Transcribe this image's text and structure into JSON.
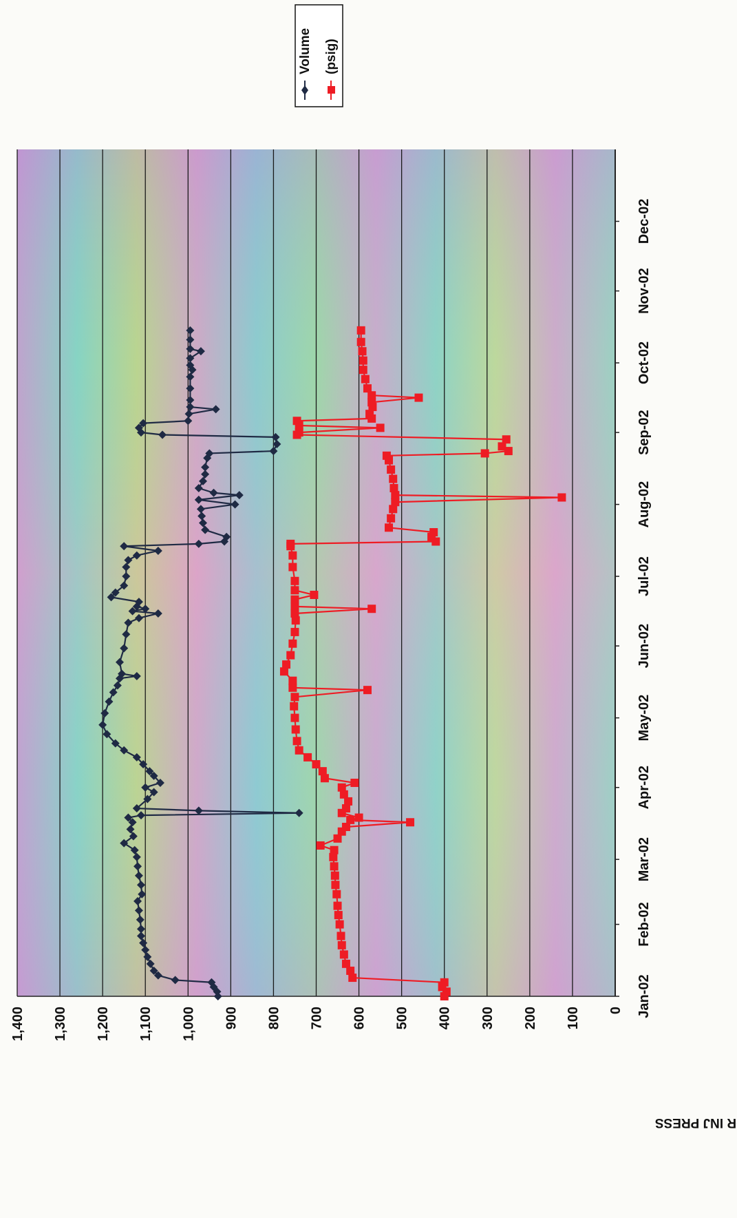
{
  "chart_data": {
    "type": "line",
    "title": "",
    "xlabel": "",
    "ylabel": "BWPD OR INJ PRESS",
    "ylim": [
      0,
      1400
    ],
    "yticks": [
      "0",
      "100",
      "200",
      "300",
      "400",
      "500",
      "600",
      "700",
      "800",
      "900",
      "1,000",
      "1,100",
      "1,200",
      "1,300",
      "1,400"
    ],
    "xlim": [
      "2002-01-01",
      "2003-01-01"
    ],
    "xticks": [
      "Jan-02",
      "Feb-02",
      "Mar-02",
      "Apr-02",
      "May-02",
      "Jun-02",
      "Jul-02",
      "Aug-02",
      "Sep-02",
      "Oct-02",
      "Nov-02",
      "Dec-02"
    ],
    "orientation": "rotated 90° clockwise",
    "grid": true,
    "legend": "top-right",
    "series": [
      {
        "name": "Volume",
        "color": "#1f2a44",
        "marker": "diamond",
        "points": [
          [
            "2002-01-01",
            930
          ],
          [
            "2002-01-03",
            932
          ],
          [
            "2002-01-05",
            940
          ],
          [
            "2002-01-07",
            945
          ],
          [
            "2002-01-08",
            1030
          ],
          [
            "2002-01-10",
            1070
          ],
          [
            "2002-01-12",
            1080
          ],
          [
            "2002-01-15",
            1088
          ],
          [
            "2002-01-18",
            1095
          ],
          [
            "2002-01-21",
            1100
          ],
          [
            "2002-01-24",
            1105
          ],
          [
            "2002-01-27",
            1110
          ],
          [
            "2002-01-30",
            1110
          ],
          [
            "2002-02-03",
            1112
          ],
          [
            "2002-02-07",
            1115
          ],
          [
            "2002-02-11",
            1118
          ],
          [
            "2002-02-14",
            1108
          ],
          [
            "2002-02-18",
            1110
          ],
          [
            "2002-02-22",
            1115
          ],
          [
            "2002-02-26",
            1118
          ],
          [
            "2002-03-02",
            1120
          ],
          [
            "2002-03-05",
            1125
          ],
          [
            "2002-03-08",
            1150
          ],
          [
            "2002-03-11",
            1128
          ],
          [
            "2002-03-14",
            1135
          ],
          [
            "2002-03-17",
            1130
          ],
          [
            "2002-03-19",
            1140
          ],
          [
            "2002-03-20",
            1110
          ],
          [
            "2002-03-21",
            740
          ],
          [
            "2002-03-22",
            975
          ],
          [
            "2002-03-23",
            1120
          ],
          [
            "2002-03-27",
            1095
          ],
          [
            "2002-03-30",
            1080
          ],
          [
            "2002-04-01",
            1100
          ],
          [
            "2002-04-03",
            1065
          ],
          [
            "2002-04-06",
            1080
          ],
          [
            "2002-04-08",
            1090
          ],
          [
            "2002-04-11",
            1105
          ],
          [
            "2002-04-14",
            1120
          ],
          [
            "2002-04-17",
            1150
          ],
          [
            "2002-04-20",
            1170
          ],
          [
            "2002-04-24",
            1190
          ],
          [
            "2002-04-28",
            1200
          ],
          [
            "2002-05-03",
            1195
          ],
          [
            "2002-05-08",
            1185
          ],
          [
            "2002-05-12",
            1175
          ],
          [
            "2002-05-15",
            1165
          ],
          [
            "2002-05-18",
            1160
          ],
          [
            "2002-05-19",
            1120
          ],
          [
            "2002-05-20",
            1155
          ],
          [
            "2002-05-25",
            1160
          ],
          [
            "2002-05-31",
            1150
          ],
          [
            "2002-06-06",
            1145
          ],
          [
            "2002-06-11",
            1140
          ],
          [
            "2002-06-13",
            1115
          ],
          [
            "2002-06-15",
            1070
          ],
          [
            "2002-06-16",
            1130
          ],
          [
            "2002-06-17",
            1100
          ],
          [
            "2002-06-18",
            1120
          ],
          [
            "2002-06-20",
            1115
          ],
          [
            "2002-06-22",
            1180
          ],
          [
            "2002-06-24",
            1170
          ],
          [
            "2002-06-27",
            1150
          ],
          [
            "2002-07-01",
            1145
          ],
          [
            "2002-07-05",
            1145
          ],
          [
            "2002-07-08",
            1140
          ],
          [
            "2002-07-10",
            1120
          ],
          [
            "2002-07-12",
            1070
          ],
          [
            "2002-07-14",
            1150
          ],
          [
            "2002-07-15",
            975
          ],
          [
            "2002-07-16",
            915
          ],
          [
            "2002-07-18",
            910
          ],
          [
            "2002-07-21",
            960
          ],
          [
            "2002-07-24",
            965
          ],
          [
            "2002-07-27",
            968
          ],
          [
            "2002-07-30",
            970
          ],
          [
            "2002-08-01",
            890
          ],
          [
            "2002-08-03",
            975
          ],
          [
            "2002-08-05",
            880
          ],
          [
            "2002-08-06",
            940
          ],
          [
            "2002-08-08",
            975
          ],
          [
            "2002-08-11",
            965
          ],
          [
            "2002-08-14",
            960
          ],
          [
            "2002-08-17",
            960
          ],
          [
            "2002-08-21",
            955
          ],
          [
            "2002-08-23",
            950
          ],
          [
            "2002-08-24",
            800
          ],
          [
            "2002-08-27",
            792
          ],
          [
            "2002-08-30",
            795
          ],
          [
            "2002-08-31",
            1060
          ],
          [
            "2002-09-01",
            1110
          ],
          [
            "2002-09-03",
            1115
          ],
          [
            "2002-09-05",
            1105
          ],
          [
            "2002-09-06",
            1000
          ],
          [
            "2002-09-09",
            998
          ],
          [
            "2002-09-11",
            935
          ],
          [
            "2002-09-12",
            995
          ],
          [
            "2002-09-15",
            995
          ],
          [
            "2002-09-20",
            995
          ],
          [
            "2002-09-25",
            995
          ],
          [
            "2002-09-28",
            990
          ],
          [
            "2002-09-30",
            995
          ],
          [
            "2002-10-03",
            995
          ],
          [
            "2002-10-06",
            970
          ],
          [
            "2002-10-07",
            995
          ],
          [
            "2002-10-11",
            995
          ],
          [
            "2002-10-15",
            995
          ]
        ]
      },
      {
        "name": "(psig)",
        "color": "#ee1c24",
        "marker": "square",
        "points": [
          [
            "2002-01-01",
            400
          ],
          [
            "2002-01-03",
            395
          ],
          [
            "2002-01-05",
            405
          ],
          [
            "2002-01-07",
            400
          ],
          [
            "2002-01-09",
            615
          ],
          [
            "2002-01-12",
            620
          ],
          [
            "2002-01-15",
            630
          ],
          [
            "2002-01-19",
            635
          ],
          [
            "2002-01-23",
            640
          ],
          [
            "2002-01-27",
            642
          ],
          [
            "2002-02-01",
            645
          ],
          [
            "2002-02-05",
            648
          ],
          [
            "2002-02-09",
            650
          ],
          [
            "2002-02-14",
            652
          ],
          [
            "2002-02-18",
            655
          ],
          [
            "2002-02-22",
            656
          ],
          [
            "2002-02-26",
            658
          ],
          [
            "2002-03-02",
            660
          ],
          [
            "2002-03-05",
            658
          ],
          [
            "2002-03-07",
            690
          ],
          [
            "2002-03-10",
            650
          ],
          [
            "2002-03-13",
            640
          ],
          [
            "2002-03-15",
            630
          ],
          [
            "2002-03-17",
            480
          ],
          [
            "2002-03-18",
            620
          ],
          [
            "2002-03-19",
            600
          ],
          [
            "2002-03-21",
            640
          ],
          [
            "2002-03-23",
            630
          ],
          [
            "2002-03-26",
            625
          ],
          [
            "2002-03-29",
            635
          ],
          [
            "2002-04-01",
            640
          ],
          [
            "2002-04-03",
            610
          ],
          [
            "2002-04-05",
            680
          ],
          [
            "2002-04-08",
            685
          ],
          [
            "2002-04-11",
            700
          ],
          [
            "2002-04-14",
            720
          ],
          [
            "2002-04-17",
            740
          ],
          [
            "2002-04-21",
            745
          ],
          [
            "2002-04-26",
            748
          ],
          [
            "2002-05-01",
            750
          ],
          [
            "2002-05-06",
            752
          ],
          [
            "2002-05-10",
            750
          ],
          [
            "2002-05-13",
            580
          ],
          [
            "2002-05-14",
            755
          ],
          [
            "2002-05-17",
            755
          ],
          [
            "2002-05-21",
            775
          ],
          [
            "2002-05-24",
            770
          ],
          [
            "2002-05-28",
            760
          ],
          [
            "2002-06-02",
            755
          ],
          [
            "2002-06-07",
            750
          ],
          [
            "2002-06-12",
            748
          ],
          [
            "2002-06-15",
            750
          ],
          [
            "2002-06-17",
            570
          ],
          [
            "2002-06-18",
            750
          ],
          [
            "2002-06-21",
            750
          ],
          [
            "2002-06-23",
            705
          ],
          [
            "2002-06-25",
            750
          ],
          [
            "2002-06-29",
            750
          ],
          [
            "2002-07-05",
            755
          ],
          [
            "2002-07-10",
            755
          ],
          [
            "2002-07-14",
            760
          ],
          [
            "2002-07-15",
            760
          ],
          [
            "2002-07-16",
            420
          ],
          [
            "2002-07-18",
            430
          ],
          [
            "2002-07-20",
            425
          ],
          [
            "2002-07-22",
            530
          ],
          [
            "2002-07-26",
            525
          ],
          [
            "2002-07-30",
            520
          ],
          [
            "2002-08-02",
            515
          ],
          [
            "2002-08-04",
            125
          ],
          [
            "2002-08-05",
            515
          ],
          [
            "2002-08-08",
            518
          ],
          [
            "2002-08-12",
            520
          ],
          [
            "2002-08-16",
            525
          ],
          [
            "2002-08-20",
            530
          ],
          [
            "2002-08-22",
            535
          ],
          [
            "2002-08-23",
            305
          ],
          [
            "2002-08-24",
            250
          ],
          [
            "2002-08-26",
            265
          ],
          [
            "2002-08-29",
            255
          ],
          [
            "2002-08-31",
            745
          ],
          [
            "2002-09-01",
            740
          ],
          [
            "2002-09-03",
            550
          ],
          [
            "2002-09-04",
            740
          ],
          [
            "2002-09-06",
            745
          ],
          [
            "2002-09-07",
            570
          ],
          [
            "2002-09-09",
            575
          ],
          [
            "2002-09-12",
            568
          ],
          [
            "2002-09-14",
            570
          ],
          [
            "2002-09-16",
            460
          ],
          [
            "2002-09-17",
            570
          ],
          [
            "2002-09-20",
            580
          ],
          [
            "2002-09-24",
            585
          ],
          [
            "2002-09-28",
            590
          ],
          [
            "2002-10-02",
            590
          ],
          [
            "2002-10-06",
            592
          ],
          [
            "2002-10-10",
            595
          ],
          [
            "2002-10-15",
            595
          ]
        ]
      }
    ]
  }
}
